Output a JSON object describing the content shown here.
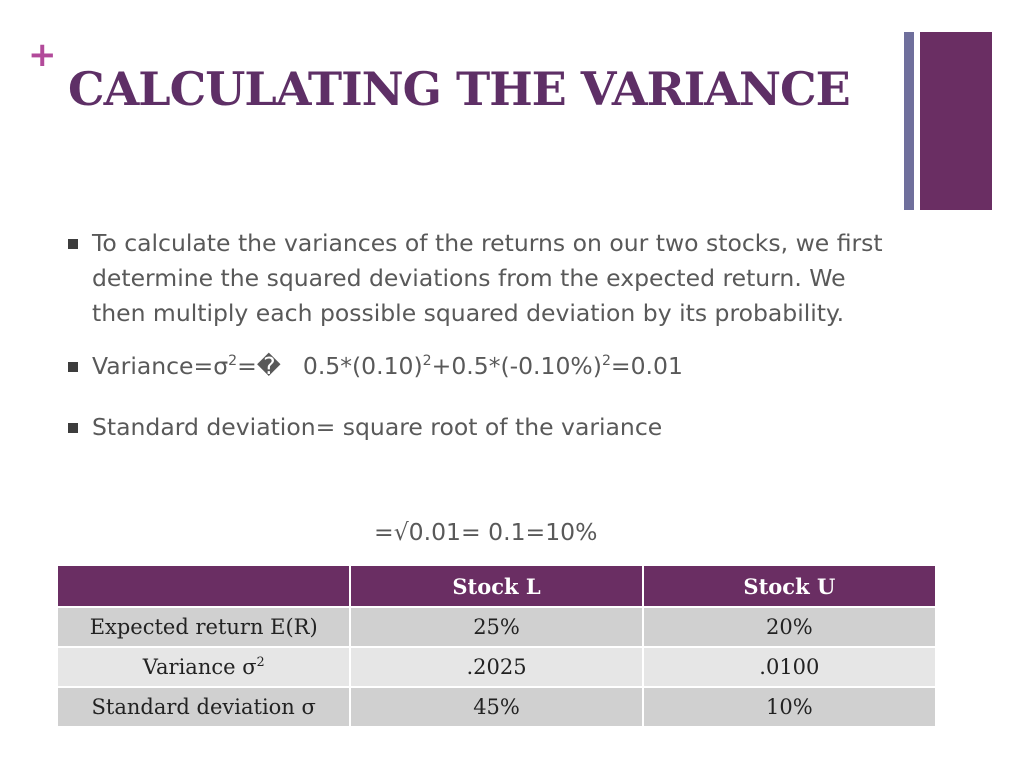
{
  "slide": {
    "title": "CALCULATING THE VARIANCE",
    "plus": "+",
    "bullets": {
      "b1": "To calculate the variances of the returns on our two stocks, we first determine the squared deviations from the expected return. We then multiply each possible squared deviation by its probability.",
      "b2": {
        "var_label": "Variance=σ",
        "eq1": "=�",
        "term1": "0.5*(0.10)",
        "term2": "+0.5*(-0.10%)",
        "eq2": "=0.01",
        "exp": "2"
      },
      "b3": "Standard deviation= square root of the variance"
    },
    "sqrt_line": "=√0.01= 0.1=10%"
  },
  "table": {
    "headers": [
      "",
      "Stock L",
      "Stock U"
    ],
    "rows": [
      {
        "label": "Expected return E(R)",
        "label_sup": "",
        "l": "25%",
        "u": "20%"
      },
      {
        "label": "Variance σ",
        "label_sup": "2",
        "l": ".2025",
        "u": ".0100"
      },
      {
        "label": "Standard deviation σ",
        "label_sup": "",
        "l": "45%",
        "u": "10%"
      }
    ]
  },
  "colors": {
    "accent_purple": "#6a2e63",
    "title_purple": "#5e2f66",
    "plus_magenta": "#b24a9a",
    "side_bar_slate": "#6f6f9c"
  }
}
